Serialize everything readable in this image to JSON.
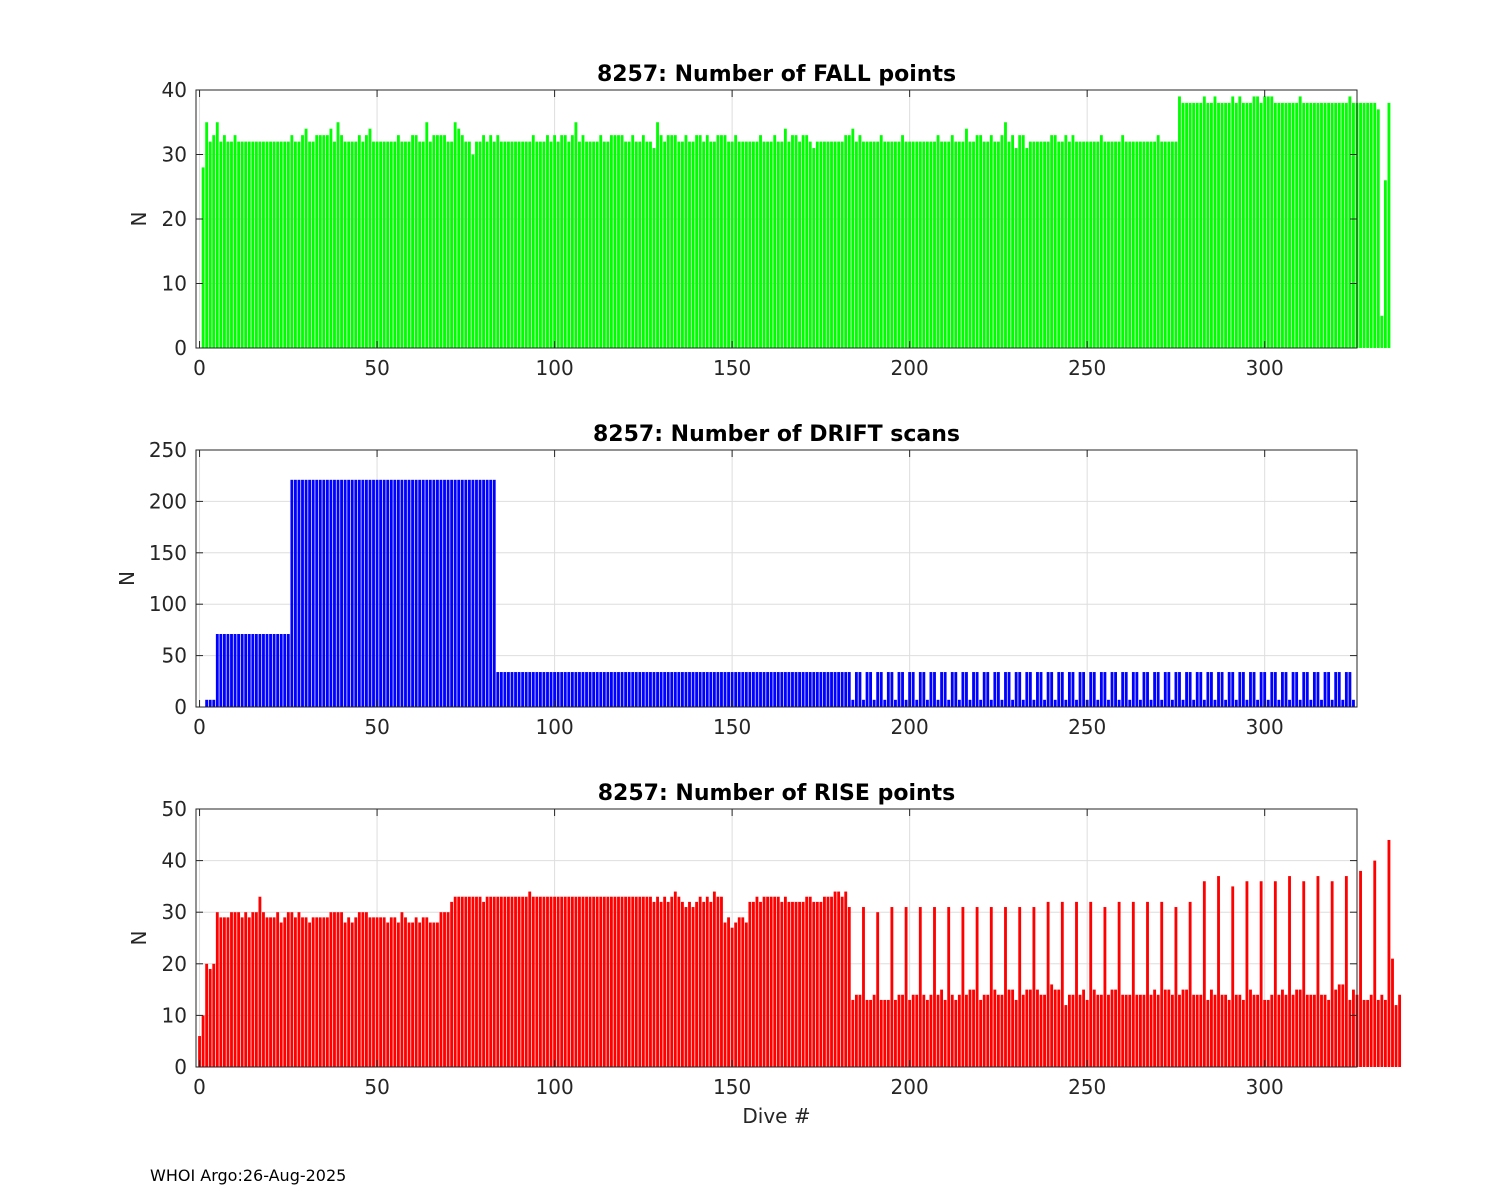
{
  "chart_data": [
    {
      "type": "bar",
      "title": "8257: Number of FALL points",
      "ylabel": "N",
      "xlabel": "",
      "color": "#00ff00",
      "xlim": [
        -1,
        326
      ],
      "ylim": [
        0,
        40
      ],
      "xticks": [
        0,
        50,
        100,
        150,
        200,
        250,
        300
      ],
      "yticks": [
        0,
        10,
        20,
        30,
        40
      ],
      "grid": true,
      "x_start": 1,
      "values": [
        28,
        35,
        32,
        33,
        35,
        32,
        33,
        32,
        32,
        33,
        32,
        32,
        32,
        32,
        32,
        32,
        32,
        32,
        32,
        32,
        32,
        32,
        32,
        32,
        32,
        33,
        32,
        32,
        33,
        34,
        32,
        32,
        33,
        33,
        33,
        33,
        34,
        32,
        35,
        33,
        32,
        32,
        32,
        32,
        33,
        32,
        33,
        34,
        32,
        32,
        32,
        32,
        32,
        32,
        32,
        33,
        32,
        32,
        32,
        33,
        33,
        32,
        32,
        35,
        32,
        33,
        33,
        33,
        33,
        32,
        32,
        35,
        34,
        33,
        32,
        32,
        30,
        32,
        32,
        33,
        32,
        33,
        32,
        33,
        32,
        32,
        32,
        32,
        32,
        32,
        32,
        32,
        32,
        33,
        32,
        32,
        32,
        33,
        32,
        33,
        32,
        33,
        33,
        32,
        33,
        35,
        32,
        33,
        32,
        32,
        32,
        32,
        33,
        32,
        32,
        33,
        33,
        33,
        33,
        32,
        32,
        33,
        32,
        32,
        33,
        32,
        32,
        31,
        35,
        33,
        32,
        33,
        33,
        33,
        32,
        32,
        33,
        32,
        32,
        33,
        33,
        32,
        33,
        32,
        32,
        33,
        33,
        33,
        32,
        32,
        33,
        32,
        32,
        32,
        32,
        32,
        32,
        33,
        32,
        32,
        32,
        33,
        32,
        32,
        34,
        32,
        33,
        33,
        32,
        33,
        33,
        32,
        31,
        32,
        32,
        32,
        32,
        32,
        32,
        32,
        32,
        33,
        33,
        34,
        32,
        33,
        32,
        32,
        32,
        32,
        32,
        33,
        32,
        32,
        32,
        32,
        32,
        33,
        32,
        32,
        32,
        32,
        32,
        32,
        32,
        32,
        32,
        33,
        32,
        32,
        32,
        33,
        32,
        32,
        32,
        34,
        32,
        32,
        33,
        33,
        32,
        32,
        33,
        32,
        32,
        33,
        35,
        32,
        33,
        31,
        33,
        33,
        31,
        32,
        32,
        32,
        32,
        32,
        32,
        33,
        33,
        32,
        32,
        33,
        32,
        33,
        32,
        32,
        32,
        32,
        32,
        32,
        32,
        33,
        32,
        32,
        32,
        32,
        32,
        33,
        32,
        32,
        32,
        32,
        32,
        32,
        32,
        32,
        32,
        33,
        32,
        32,
        32,
        32,
        32,
        39,
        38,
        38,
        38,
        38,
        38,
        38,
        39,
        38,
        38,
        39,
        38,
        38,
        38,
        38,
        39,
        38,
        39,
        38,
        38,
        38,
        39,
        39,
        38,
        39,
        39,
        39,
        38,
        38,
        38,
        38,
        38,
        38,
        38,
        39,
        38,
        38,
        38,
        38,
        38,
        38,
        38,
        38,
        38,
        38,
        38,
        38,
        38,
        39,
        38,
        38,
        38,
        38,
        38,
        38,
        38,
        37,
        5,
        26,
        38
      ]
    },
    {
      "type": "bar",
      "title": "8257: Number of DRIFT scans",
      "ylabel": "N",
      "xlabel": "",
      "color": "#0000ff",
      "xlim": [
        -1,
        326
      ],
      "ylim": [
        0,
        250
      ],
      "xticks": [
        0,
        50,
        100,
        150,
        200,
        250,
        300
      ],
      "yticks": [
        0,
        50,
        100,
        150,
        200,
        250
      ],
      "grid": true,
      "segments": [
        {
          "from": 2,
          "to": 4,
          "value": 7
        },
        {
          "from": 5,
          "to": 25,
          "value": 71
        },
        {
          "from": 26,
          "to": 83,
          "value": 221
        },
        {
          "from": 84,
          "to": 181,
          "value": 34
        },
        {
          "from": 182,
          "to": 325,
          "value": 34,
          "every": 3,
          "between": 7
        }
      ]
    },
    {
      "type": "bar",
      "title": "8257: Number of RISE points",
      "ylabel": "N",
      "xlabel": "Dive #",
      "color": "#ff0000",
      "xlim": [
        -1,
        326
      ],
      "ylim": [
        0,
        50
      ],
      "xticks": [
        0,
        50,
        100,
        150,
        200,
        250,
        300
      ],
      "yticks": [
        0,
        10,
        20,
        30,
        40,
        50
      ],
      "grid": true,
      "x_start": 0,
      "values": [
        6,
        10,
        20,
        19,
        20,
        30,
        29,
        29,
        29,
        30,
        30,
        30,
        29,
        30,
        29,
        30,
        30,
        33,
        30,
        29,
        29,
        29,
        30,
        28,
        29,
        30,
        30,
        29,
        30,
        29,
        29,
        28,
        29,
        29,
        29,
        29,
        29,
        30,
        30,
        30,
        30,
        28,
        29,
        28,
        29,
        30,
        30,
        30,
        29,
        29,
        29,
        29,
        29,
        28,
        29,
        29,
        28,
        30,
        29,
        28,
        28,
        29,
        28,
        29,
        29,
        28,
        28,
        28,
        30,
        30,
        30,
        32,
        33,
        33,
        33,
        33,
        33,
        33,
        33,
        33,
        32,
        33,
        33,
        33,
        33,
        33,
        33,
        33,
        33,
        33,
        33,
        33,
        33,
        34,
        33,
        33,
        33,
        33,
        33,
        33,
        33,
        33,
        33,
        33,
        33,
        33,
        33,
        33,
        33,
        33,
        33,
        33,
        33,
        33,
        33,
        33,
        33,
        33,
        33,
        33,
        33,
        33,
        33,
        33,
        33,
        33,
        33,
        33,
        32,
        33,
        32,
        33,
        32,
        33,
        34,
        33,
        32,
        31,
        32,
        31,
        32,
        33,
        32,
        33,
        32,
        34,
        33,
        33,
        28,
        29,
        27,
        28,
        29,
        29,
        28,
        32,
        32,
        33,
        32,
        33,
        33,
        33,
        33,
        33,
        32,
        33,
        32,
        32,
        32,
        32,
        32,
        33,
        33,
        32,
        32,
        32,
        33,
        33,
        33,
        34,
        34,
        33,
        34,
        31,
        13,
        14,
        14,
        31,
        13,
        13,
        14,
        30,
        13,
        13,
        13,
        31,
        13,
        14,
        14,
        31,
        13,
        14,
        14,
        31,
        14,
        13,
        14,
        31,
        14,
        15,
        13,
        31,
        14,
        13,
        14,
        31,
        14,
        15,
        15,
        31,
        13,
        14,
        14,
        31,
        15,
        14,
        14,
        31,
        15,
        15,
        13,
        31,
        14,
        15,
        15,
        31,
        15,
        14,
        14,
        32,
        16,
        15,
        15,
        32,
        12,
        14,
        14,
        32,
        14,
        15,
        13,
        32,
        15,
        14,
        14,
        31,
        14,
        15,
        15,
        32,
        14,
        14,
        14,
        32,
        14,
        14,
        14,
        32,
        14,
        15,
        14,
        32,
        15,
        15,
        14,
        31,
        14,
        15,
        15,
        32,
        14,
        14,
        14,
        36,
        13,
        15,
        14,
        37,
        14,
        14,
        13,
        35,
        14,
        14,
        13,
        36,
        15,
        14,
        14,
        36,
        13,
        13,
        14,
        36,
        14,
        15,
        14,
        37,
        14,
        15,
        15,
        36,
        14,
        14,
        14,
        37,
        14,
        14,
        13,
        36,
        15,
        16,
        16,
        37,
        13,
        15,
        14,
        38,
        13,
        13,
        14,
        40,
        13,
        14,
        13,
        44,
        21,
        12,
        14
      ]
    }
  ],
  "footer": {
    "text": "WHOI Argo:26-Aug-2025"
  }
}
